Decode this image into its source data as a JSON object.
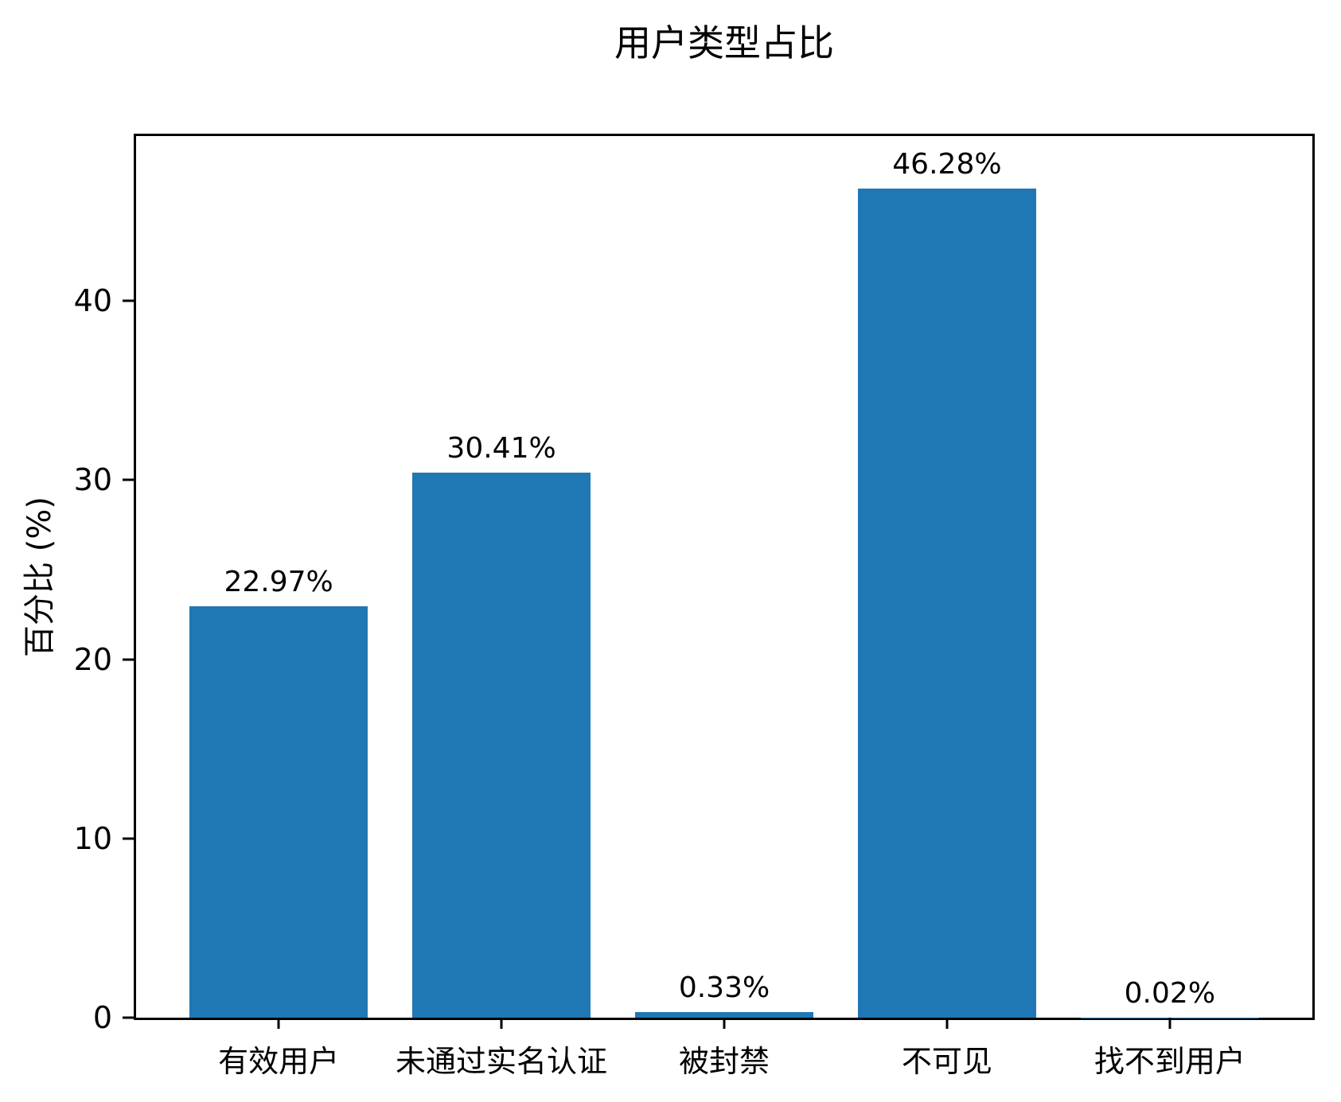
{
  "chart_data": {
    "type": "bar",
    "title": "用户类型占比",
    "xlabel": "",
    "ylabel": "百分比 (%)",
    "categories": [
      "有效用户",
      "未通过实名认证",
      "被封禁",
      "不可见",
      "找不到用户"
    ],
    "values": [
      22.97,
      30.41,
      0.33,
      46.28,
      0.02
    ],
    "value_labels": [
      "22.97%",
      "30.41%",
      "0.33%",
      "46.28%",
      "0.02%"
    ],
    "yticks": [
      0,
      10,
      20,
      30,
      40
    ],
    "ylim": [
      0,
      49.2
    ],
    "xlim": [
      -0.64,
      4.64
    ],
    "bar_width": 0.8,
    "bar_color": "#1f77b4",
    "axis_color": "#000000",
    "text_color": "#000000",
    "background_color": "#ffffff",
    "grid": false,
    "legend": null
  }
}
